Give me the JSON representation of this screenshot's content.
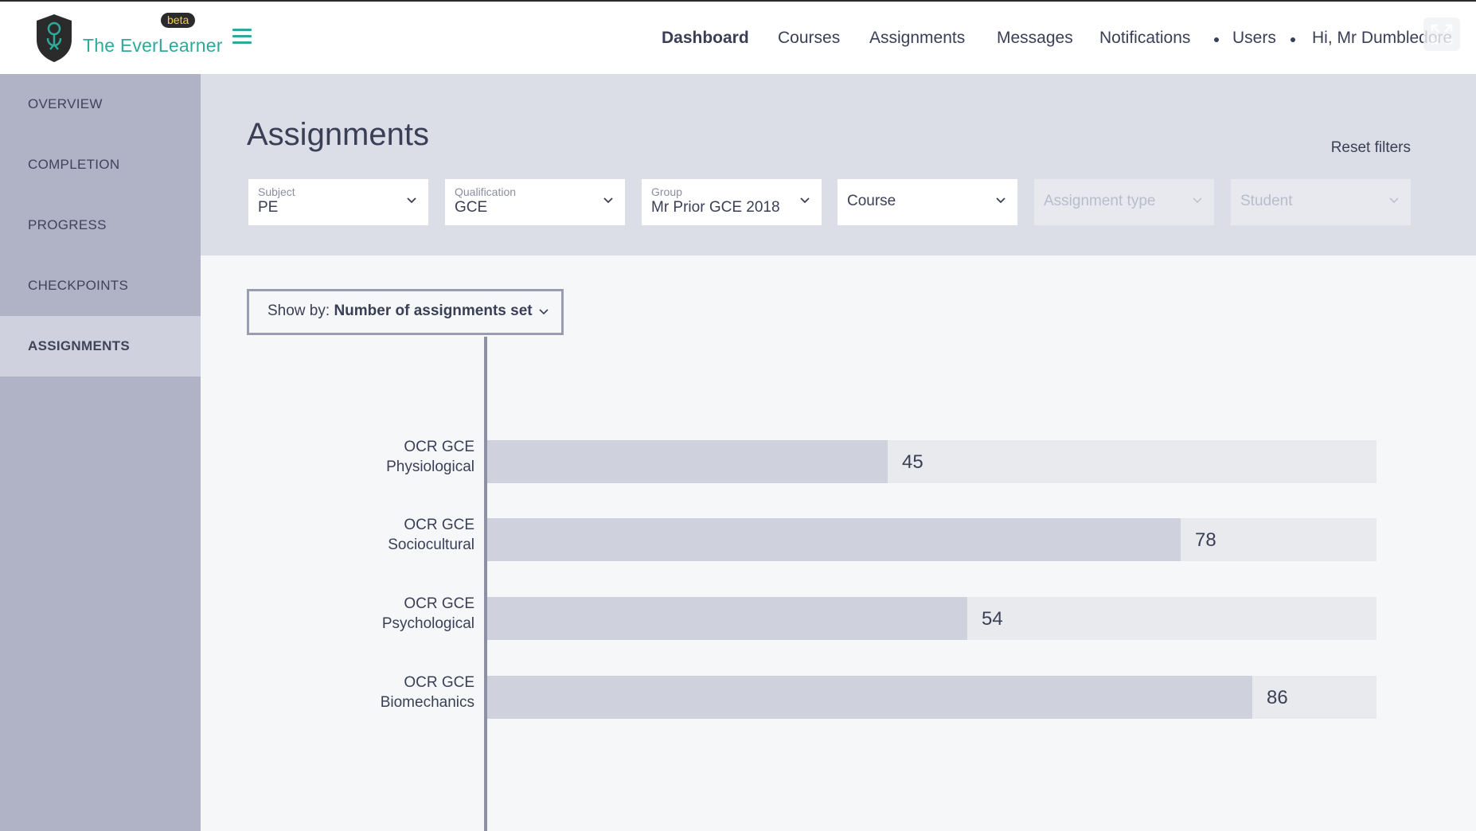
{
  "brand": {
    "name": "The EverLearner",
    "badge": "beta"
  },
  "nav": {
    "dashboard": "Dashboard",
    "courses": "Courses",
    "assignments": "Assignments",
    "messages": "Messages",
    "notifications": "Notifications",
    "users": "Users",
    "greeting": "Hi, Mr Dumbledore"
  },
  "sidebar": {
    "items": [
      {
        "label": "OVERVIEW"
      },
      {
        "label": "COMPLETION"
      },
      {
        "label": "PROGRESS"
      },
      {
        "label": "CHECKPOINTS"
      },
      {
        "label": "ASSIGNMENTS",
        "active": true
      }
    ]
  },
  "page": {
    "title": "Assignments",
    "reset": "Reset filters"
  },
  "filters": {
    "subject": {
      "label": "Subject",
      "value": "PE"
    },
    "qualification": {
      "label": "Qualification",
      "value": "GCE"
    },
    "group": {
      "label": "Group",
      "value": "Mr Prior GCE 2018"
    },
    "course": {
      "placeholder": "Course"
    },
    "assignment_type": {
      "placeholder": "Assignment type"
    },
    "student": {
      "placeholder": "Student"
    }
  },
  "showby": {
    "prefix": "Show by:",
    "value": "Number of assignments set"
  },
  "chart_data": {
    "type": "bar",
    "orientation": "horizontal",
    "categories": [
      [
        "OCR GCE",
        "Physiological"
      ],
      [
        "OCR GCE",
        "Sociocultural"
      ],
      [
        "OCR GCE",
        "Psychological"
      ],
      [
        "OCR GCE",
        "Biomechanics"
      ]
    ],
    "values": [
      45,
      78,
      54,
      86
    ],
    "xlim": [
      0,
      100
    ],
    "grid": false,
    "colors": {
      "fill": "#cfd1dc",
      "track": "#e9eaee"
    }
  },
  "colors": {
    "brand": "#2fa99a",
    "sidebar": "#b0b3c6",
    "sidebar_active": "#cfd1de",
    "text": "#3a3f56"
  }
}
